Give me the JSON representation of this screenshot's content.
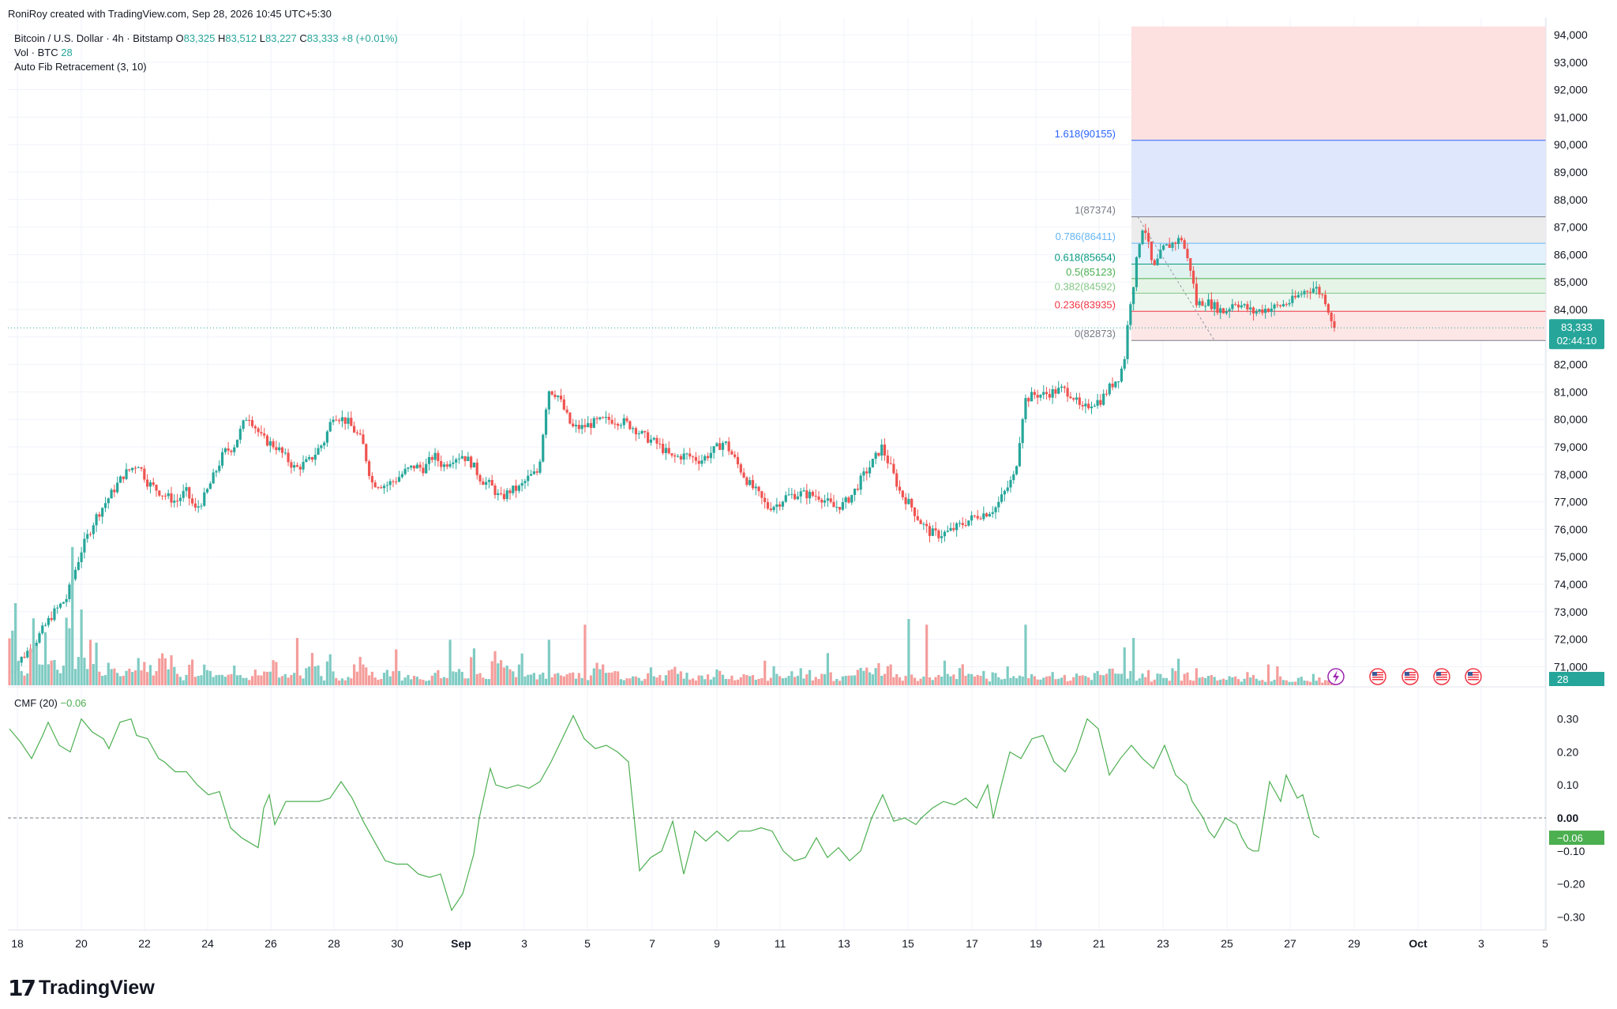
{
  "header": {
    "credit": "RoniRoy created with TradingView.com, Sep 28, 2026 10:45 UTC+5:30"
  },
  "legend": {
    "symbol": "Bitcoin / U.S. Dollar · 4h · Bitstamp",
    "o_label": "O",
    "o": "83,325",
    "h_label": "H",
    "h": "83,512",
    "l_label": "L",
    "l": "83,227",
    "c_label": "C",
    "c": "83,333",
    "chg": "+8 (+0.01%)",
    "vol_label": "Vol · BTC",
    "vol_value": "28",
    "fib_label": "Auto Fib Retracement (3, 10)"
  },
  "cmf_legend": {
    "label": "CMF (20)",
    "value": "−0.06"
  },
  "price_tag": {
    "price": "83,333",
    "countdown": "02:44:10"
  },
  "vol_tag": "28",
  "cmf_tag": "−0.06",
  "logo": {
    "text": "TradingView"
  },
  "colors": {
    "up": "#26a69a",
    "down": "#ef5350",
    "cmf": "#4caf50",
    "fib1618": "#2962ff"
  },
  "chart_data": {
    "type": "candlestick",
    "timeframe": "4h",
    "xticks": [
      "18",
      "20",
      "22",
      "24",
      "26",
      "28",
      "30",
      "Sep",
      "3",
      "5",
      "7",
      "9",
      "11",
      "13",
      "15",
      "17",
      "19",
      "21",
      "23",
      "25",
      "27",
      "29",
      "Oct",
      "3",
      "5"
    ],
    "yticks": [
      "94,000",
      "93,000",
      "92,000",
      "91,000",
      "90,000",
      "89,000",
      "88,000",
      "87,000",
      "86,000",
      "85,000",
      "84,000",
      "83,000",
      "82,000",
      "81,000",
      "80,000",
      "79,000",
      "78,000",
      "77,000",
      "76,000",
      "75,000",
      "74,000",
      "73,000",
      "72,000",
      "71,000"
    ],
    "ylim": [
      70200,
      94300
    ],
    "fib_levels": [
      {
        "ratio": "1.618",
        "price": 90155,
        "label": "1.618(90155)",
        "color": "#2962ff"
      },
      {
        "ratio": "1",
        "price": 87374,
        "label": "1(87374)",
        "color": "#787b86"
      },
      {
        "ratio": "0.786",
        "price": 86411,
        "label": "0.786(86411)",
        "color": "#64b5f6"
      },
      {
        "ratio": "0.618",
        "price": 85654,
        "label": "0.618(85654)",
        "color": "#089981"
      },
      {
        "ratio": "0.5",
        "price": 85123,
        "label": "0.5(85123)",
        "color": "#4caf50"
      },
      {
        "ratio": "0.382",
        "price": 84592,
        "label": "0.382(84592)",
        "color": "#81c784"
      },
      {
        "ratio": "0.236",
        "price": 83935,
        "label": "0.236(83935)",
        "color": "#f23645"
      },
      {
        "ratio": "0",
        "price": 82873,
        "label": "0(82873)",
        "color": "#787b86"
      }
    ],
    "price_path": [
      [
        0,
        70800
      ],
      [
        10,
        71800
      ],
      [
        18,
        72900
      ],
      [
        24,
        73500
      ],
      [
        30,
        75200
      ],
      [
        36,
        76400
      ],
      [
        42,
        77200
      ],
      [
        48,
        78000
      ],
      [
        54,
        78400
      ],
      [
        58,
        77700
      ],
      [
        64,
        77300
      ],
      [
        70,
        77000
      ],
      [
        74,
        77400
      ],
      [
        78,
        76700
      ],
      [
        82,
        77200
      ],
      [
        86,
        78000
      ],
      [
        90,
        78800
      ],
      [
        94,
        79000
      ],
      [
        100,
        80200
      ],
      [
        106,
        79300
      ],
      [
        112,
        79000
      ],
      [
        116,
        78600
      ],
      [
        120,
        78200
      ],
      [
        126,
        78500
      ],
      [
        132,
        79200
      ],
      [
        136,
        80200
      ],
      [
        142,
        79900
      ],
      [
        148,
        79200
      ],
      [
        152,
        77700
      ],
      [
        158,
        77600
      ],
      [
        162,
        77800
      ],
      [
        166,
        78100
      ],
      [
        170,
        78300
      ],
      [
        174,
        78200
      ],
      [
        178,
        78700
      ],
      [
        182,
        78300
      ],
      [
        186,
        78600
      ],
      [
        190,
        78700
      ],
      [
        194,
        78400
      ],
      [
        198,
        77800
      ],
      [
        202,
        77600
      ],
      [
        206,
        77100
      ],
      [
        210,
        77400
      ],
      [
        214,
        77500
      ],
      [
        218,
        77900
      ],
      [
        222,
        78100
      ],
      [
        226,
        81100
      ],
      [
        230,
        80900
      ],
      [
        236,
        79700
      ],
      [
        240,
        79700
      ],
      [
        246,
        79900
      ],
      [
        252,
        80000
      ],
      [
        258,
        79900
      ],
      [
        262,
        79700
      ],
      [
        266,
        79400
      ],
      [
        272,
        79100
      ],
      [
        278,
        78600
      ],
      [
        284,
        78700
      ],
      [
        290,
        78500
      ],
      [
        296,
        78900
      ],
      [
        300,
        79200
      ],
      [
        306,
        78300
      ],
      [
        310,
        77700
      ],
      [
        314,
        77300
      ],
      [
        318,
        76800
      ],
      [
        322,
        76900
      ],
      [
        326,
        77200
      ],
      [
        332,
        77300
      ],
      [
        340,
        77200
      ],
      [
        346,
        76800
      ],
      [
        350,
        76900
      ],
      [
        354,
        77300
      ],
      [
        358,
        77900
      ],
      [
        362,
        78400
      ],
      [
        366,
        79000
      ],
      [
        370,
        78200
      ],
      [
        374,
        77300
      ],
      [
        378,
        76900
      ],
      [
        382,
        76300
      ],
      [
        386,
        75900
      ],
      [
        390,
        75800
      ],
      [
        394,
        75900
      ],
      [
        398,
        76100
      ],
      [
        402,
        76300
      ],
      [
        406,
        76500
      ],
      [
        410,
        76600
      ],
      [
        414,
        76800
      ],
      [
        418,
        77400
      ],
      [
        422,
        78000
      ],
      [
        426,
        80700
      ],
      [
        430,
        80900
      ],
      [
        434,
        80900
      ],
      [
        438,
        81000
      ],
      [
        442,
        81100
      ],
      [
        446,
        80900
      ],
      [
        450,
        80300
      ],
      [
        454,
        80600
      ],
      [
        458,
        80700
      ],
      [
        462,
        81200
      ],
      [
        466,
        81600
      ],
      [
        468,
        82300
      ],
      [
        470,
        84100
      ],
      [
        472,
        85100
      ],
      [
        474,
        86400
      ],
      [
        476,
        87200
      ],
      [
        478,
        86300
      ],
      [
        480,
        85400
      ],
      [
        484,
        86200
      ],
      [
        488,
        86400
      ],
      [
        492,
        86600
      ],
      [
        494,
        85900
      ],
      [
        496,
        85400
      ],
      [
        498,
        84200
      ],
      [
        502,
        84300
      ],
      [
        506,
        84100
      ],
      [
        510,
        83900
      ],
      [
        514,
        84300
      ],
      [
        518,
        84100
      ],
      [
        522,
        83900
      ],
      [
        526,
        84000
      ],
      [
        532,
        84100
      ],
      [
        538,
        84300
      ],
      [
        544,
        84700
      ],
      [
        548,
        84800
      ],
      [
        552,
        84400
      ],
      [
        556,
        83333
      ]
    ],
    "volume_levels": [
      0.4,
      0.12,
      0.05,
      0.3,
      0.1,
      0.15,
      0.12,
      0.09,
      0.28,
      0.07,
      0.16,
      0.14,
      0.18,
      0.07,
      0.12,
      0.08,
      0.05,
      0.09,
      0.13,
      0.1,
      0.08,
      0.12,
      0.21,
      0.13,
      0.07,
      0.04,
      0.11,
      0.05,
      0.08,
      0.06,
      0.04,
      0.06,
      0.09,
      0.05,
      0.03,
      0.07,
      0.04,
      0.07,
      0.11,
      0.04,
      0.05,
      0.09,
      0.04,
      0.08,
      0.14,
      0.04,
      0.13,
      0.06,
      0.03,
      0.04,
      0.09,
      0.09,
      0.06,
      0.03,
      0.05,
      0.06,
      0.07,
      0.04,
      0.05,
      0.04,
      0.03,
      0.04,
      0.06,
      0.05,
      0.06,
      0.08,
      0.03,
      0.15,
      0.06,
      0.05,
      0.1,
      0.13,
      0.08,
      0.07,
      0.12,
      0.06,
      0.05,
      0.07,
      0.03,
      0.05,
      0.04,
      0.06,
      0.05,
      0.03,
      0.04,
      0.1,
      0.09,
      0.05,
      0.06,
      0.04,
      0.05,
      0.06,
      0.03,
      0.07,
      0.04,
      0.04,
      0.07,
      0.06,
      0.05,
      0.03,
      0.06,
      0.05,
      0.04,
      0.06,
      0.03,
      0.04,
      0.05,
      0.06,
      0.04,
      0.05,
      0.03,
      0.09,
      0.05,
      0.06,
      0.04,
      0.05,
      0.06,
      0.04,
      0.05,
      0.06,
      0.03,
      0.05,
      0.04,
      0.06,
      0.07,
      0.05,
      0.12,
      0.08,
      0.05,
      0.06,
      0.04,
      0.05,
      0.03,
      0.06,
      0.04,
      0.05,
      0.07,
      0.05,
      0.08,
      0.06,
      0.05,
      0.06,
      0.03,
      0.05,
      0.04,
      0.06,
      0.05,
      0.04,
      0.06,
      0.05,
      0.04,
      0.06,
      0.05,
      0.04,
      0.03,
      0.05,
      0.05,
      0.04,
      0.06,
      0.05,
      0.07,
      0.05,
      0.03,
      0.06,
      0.04,
      0.06,
      0.03,
      0.05,
      0.04,
      0.09,
      0.04,
      0.05,
      0.03,
      0.06,
      0.05,
      0.04,
      0.05,
      0.04,
      0.06,
      0.03,
      0.05,
      0.04,
      0.03,
      0.02,
      0.03,
      0.04,
      0.02,
      0.03,
      0.04,
      0.02,
      0.03,
      0.02,
      0.02,
      0.03
    ],
    "volume_spikes": [
      {
        "x": 9,
        "v": 0.28
      },
      {
        "x": 13,
        "v": 0.15
      },
      {
        "x": 16,
        "v": 0.28
      },
      {
        "x": 20,
        "v": 0.47
      },
      {
        "x": 26,
        "v": 0.73
      },
      {
        "x": 28,
        "v": 0.38
      },
      {
        "x": 30,
        "v": 0.4
      },
      {
        "x": 32,
        "v": 0.35
      },
      {
        "x": 34,
        "v": 0.24
      },
      {
        "x": 74,
        "v": 0.3
      },
      {
        "x": 82,
        "v": 0.17
      },
      {
        "x": 92,
        "v": 0.21
      },
      {
        "x": 108,
        "v": 0.35
      },
      {
        "x": 118,
        "v": 0.27
      },
      {
        "x": 120,
        "v": 0.25
      },
      {
        "x": 148,
        "v": 0.15
      },
      {
        "x": 162,
        "v": 0.19
      },
      {
        "x": 184,
        "v": 0.24
      },
      {
        "x": 190,
        "v": 0.22
      },
      {
        "x": 204,
        "v": 0.18
      },
      {
        "x": 226,
        "v": 0.24
      },
      {
        "x": 228,
        "v": 0.3
      },
      {
        "x": 236,
        "v": 0.18
      },
      {
        "x": 242,
        "v": 0.32
      },
      {
        "x": 258,
        "v": 0.13
      },
      {
        "x": 288,
        "v": 0.14
      },
      {
        "x": 300,
        "v": 0.16
      },
      {
        "x": 316,
        "v": 0.13
      },
      {
        "x": 332,
        "v": 0.09
      },
      {
        "x": 344,
        "v": 0.17
      },
      {
        "x": 370,
        "v": 0.11
      },
      {
        "x": 378,
        "v": 0.35
      },
      {
        "x": 384,
        "v": 0.32
      },
      {
        "x": 392,
        "v": 0.13
      },
      {
        "x": 406,
        "v": 0.22
      },
      {
        "x": 418,
        "v": 0.1
      },
      {
        "x": 426,
        "v": 0.32
      },
      {
        "x": 468,
        "v": 0.2
      },
      {
        "x": 470,
        "v": 0.33
      },
      {
        "x": 472,
        "v": 0.25
      },
      {
        "x": 474,
        "v": 0.18
      },
      {
        "x": 478,
        "v": 0.21
      },
      {
        "x": 490,
        "v": 0.14
      },
      {
        "x": 498,
        "v": 0.09
      },
      {
        "x": 516,
        "v": 0.12
      },
      {
        "x": 528,
        "v": 0.11
      },
      {
        "x": 532,
        "v": 0.1
      },
      {
        "x": 548,
        "v": 0.06
      }
    ],
    "cmf_yticks": [
      "0.30",
      "0.20",
      "0.10",
      "0.00",
      "−0.10",
      "−0.20",
      "−0.30"
    ],
    "cmf_ylim": [
      -0.33,
      0.34
    ],
    "cmf_path": [
      [
        0,
        0.27
      ],
      [
        4,
        0.23
      ],
      [
        8,
        0.18
      ],
      [
        12,
        0.25
      ],
      [
        14,
        0.29
      ],
      [
        18,
        0.22
      ],
      [
        22,
        0.2
      ],
      [
        26,
        0.3
      ],
      [
        30,
        0.26
      ],
      [
        34,
        0.24
      ],
      [
        36,
        0.21
      ],
      [
        40,
        0.29
      ],
      [
        44,
        0.3
      ],
      [
        46,
        0.25
      ],
      [
        50,
        0.24
      ],
      [
        54,
        0.18
      ],
      [
        56,
        0.17
      ],
      [
        60,
        0.14
      ],
      [
        64,
        0.14
      ],
      [
        68,
        0.1
      ],
      [
        72,
        0.07
      ],
      [
        76,
        0.08
      ],
      [
        80,
        -0.03
      ],
      [
        84,
        -0.06
      ],
      [
        86,
        -0.07
      ],
      [
        90,
        -0.09
      ],
      [
        92,
        0.03
      ],
      [
        94,
        0.07
      ],
      [
        96,
        -0.02
      ],
      [
        100,
        0.05
      ],
      [
        104,
        0.05
      ],
      [
        108,
        0.05
      ],
      [
        112,
        0.05
      ],
      [
        116,
        0.06
      ],
      [
        120,
        0.11
      ],
      [
        124,
        0.06
      ],
      [
        128,
        -0.01
      ],
      [
        132,
        -0.07
      ],
      [
        136,
        -0.13
      ],
      [
        140,
        -0.14
      ],
      [
        144,
        -0.14
      ],
      [
        148,
        -0.17
      ],
      [
        152,
        -0.18
      ],
      [
        156,
        -0.17
      ],
      [
        160,
        -0.28
      ],
      [
        164,
        -0.23
      ],
      [
        168,
        -0.11
      ],
      [
        170,
        0.0
      ],
      [
        174,
        0.15
      ],
      [
        176,
        0.1
      ],
      [
        180,
        0.09
      ],
      [
        184,
        0.1
      ],
      [
        188,
        0.09
      ],
      [
        192,
        0.11
      ],
      [
        196,
        0.17
      ],
      [
        200,
        0.24
      ],
      [
        204,
        0.31
      ],
      [
        208,
        0.24
      ],
      [
        212,
        0.21
      ],
      [
        216,
        0.22
      ],
      [
        220,
        0.2
      ],
      [
        224,
        0.17
      ],
      [
        228,
        -0.16
      ],
      [
        232,
        -0.12
      ],
      [
        236,
        -0.1
      ],
      [
        240,
        -0.01
      ],
      [
        244,
        -0.17
      ],
      [
        248,
        -0.04
      ],
      [
        252,
        -0.07
      ],
      [
        256,
        -0.04
      ],
      [
        260,
        -0.07
      ],
      [
        264,
        -0.04
      ],
      [
        268,
        -0.04
      ],
      [
        272,
        -0.03
      ],
      [
        276,
        -0.04
      ],
      [
        280,
        -0.1
      ],
      [
        284,
        -0.13
      ],
      [
        288,
        -0.12
      ],
      [
        292,
        -0.06
      ],
      [
        296,
        -0.12
      ],
      [
        300,
        -0.09
      ],
      [
        304,
        -0.13
      ],
      [
        308,
        -0.1
      ],
      [
        312,
        0.0
      ],
      [
        316,
        0.07
      ],
      [
        320,
        -0.01
      ],
      [
        324,
        0.0
      ],
      [
        328,
        -0.02
      ],
      [
        330,
        0.0
      ],
      [
        334,
        0.03
      ],
      [
        338,
        0.05
      ],
      [
        342,
        0.04
      ],
      [
        346,
        0.06
      ],
      [
        350,
        0.03
      ],
      [
        354,
        0.1
      ],
      [
        356,
        0.0
      ],
      [
        358,
        0.07
      ],
      [
        362,
        0.2
      ],
      [
        366,
        0.18
      ],
      [
        370,
        0.24
      ],
      [
        374,
        0.25
      ],
      [
        378,
        0.17
      ],
      [
        382,
        0.14
      ],
      [
        386,
        0.2
      ],
      [
        390,
        0.3
      ],
      [
        394,
        0.27
      ],
      [
        396,
        0.2
      ],
      [
        398,
        0.13
      ],
      [
        402,
        0.18
      ],
      [
        406,
        0.22
      ],
      [
        410,
        0.18
      ],
      [
        414,
        0.15
      ],
      [
        418,
        0.22
      ],
      [
        422,
        0.13
      ],
      [
        426,
        0.1
      ],
      [
        428,
        0.05
      ],
      [
        432,
        0.0
      ],
      [
        434,
        -0.04
      ],
      [
        436,
        -0.06
      ],
      [
        440,
        0.0
      ],
      [
        444,
        -0.02
      ],
      [
        446,
        -0.06
      ],
      [
        448,
        -0.09
      ],
      [
        450,
        -0.1
      ],
      [
        452,
        -0.1
      ],
      [
        456,
        0.11
      ],
      [
        460,
        0.05
      ],
      [
        462,
        0.13
      ],
      [
        466,
        0.06
      ],
      [
        468,
        0.07
      ],
      [
        472,
        -0.05
      ],
      [
        474,
        -0.06
      ]
    ]
  }
}
